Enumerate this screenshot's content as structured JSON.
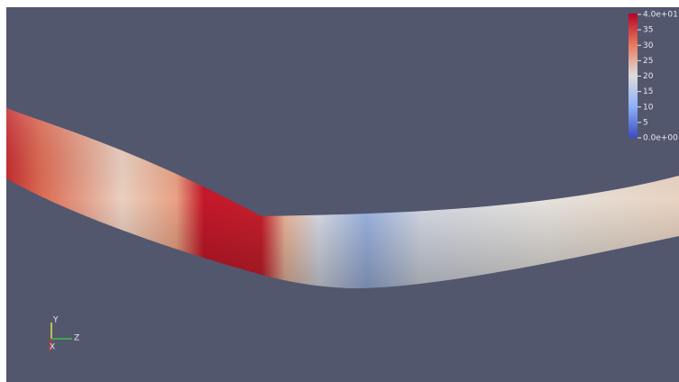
{
  "colorbar": {
    "range": [
      0,
      40
    ],
    "ticks": [
      {
        "value": 40,
        "label": "4.0e+01"
      },
      35,
      30,
      25,
      20,
      15,
      10,
      5,
      {
        "value": 0,
        "label": "0.0e+00"
      }
    ]
  },
  "axes_triad": {
    "y": "Y",
    "z": "Z",
    "x": "X"
  }
}
